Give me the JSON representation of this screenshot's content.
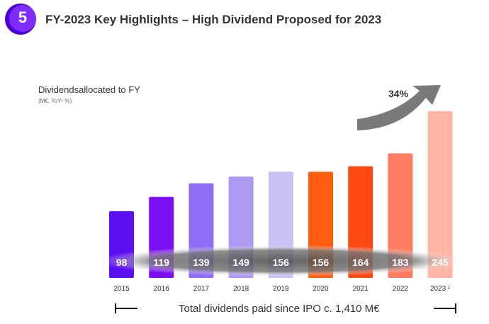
{
  "header": {
    "section_number": "5",
    "title": "FY-2023 Key Highlights – High Dividend Proposed for 2023"
  },
  "chart_label": "Dividendsallocated to FY",
  "chart_sublabel": "(M€, YoY¹ %)",
  "growth_label": "34%",
  "footer_text": "Total dividends paid since IPO c. 1,410 M€",
  "chart_data": {
    "type": "bar",
    "categories": [
      "2015",
      "2016",
      "2017",
      "2018",
      "2019",
      "2020",
      "2021",
      "2022",
      "2023 ¹"
    ],
    "values": [
      98,
      119,
      139,
      149,
      156,
      156,
      164,
      183,
      245
    ],
    "value_labels": [
      "98",
      "119",
      "139",
      "149",
      "156",
      "156",
      "164",
      "183",
      "245"
    ],
    "colors": [
      "#5b0ef0",
      "#7b10f5",
      "#8f6ef5",
      "#ad9af2",
      "#cbc2f4",
      "#ff5c0f",
      "#ff4a14",
      "#ff7e63",
      "#ffb6a5"
    ]
  }
}
